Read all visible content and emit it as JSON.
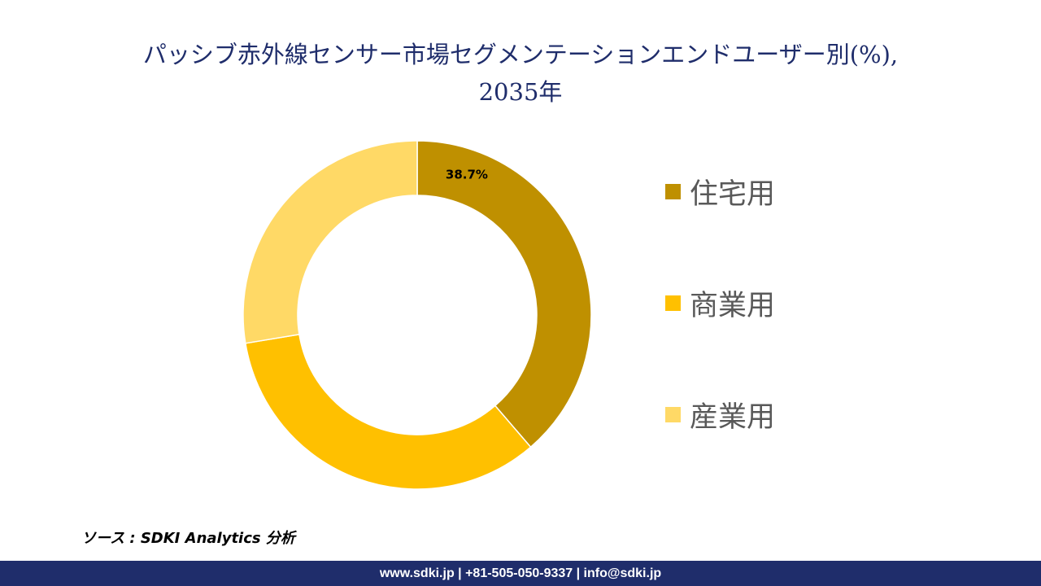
{
  "title": {
    "line1": "パッシブ赤外線センサー市場セグメンテーションエンドユーザー別(%),",
    "line2": "2035年"
  },
  "chart_data": {
    "type": "pie",
    "variant": "donut",
    "title": "パッシブ赤外線センサー市場セグメンテーションエンドユーザー別(%), 2035年",
    "categories": [
      "住宅用",
      "商業用",
      "産業用"
    ],
    "values": [
      38.7,
      33.7,
      27.6
    ],
    "colors": [
      "#bf9000",
      "#ffc000",
      "#ffd966"
    ],
    "data_labels": [
      "38.7%",
      "",
      ""
    ],
    "legend": "right"
  },
  "source": "ソース : SDKI Analytics 分析",
  "footer": "www.sdki.jp | +81-505-050-9337 | info@sdki.jp"
}
